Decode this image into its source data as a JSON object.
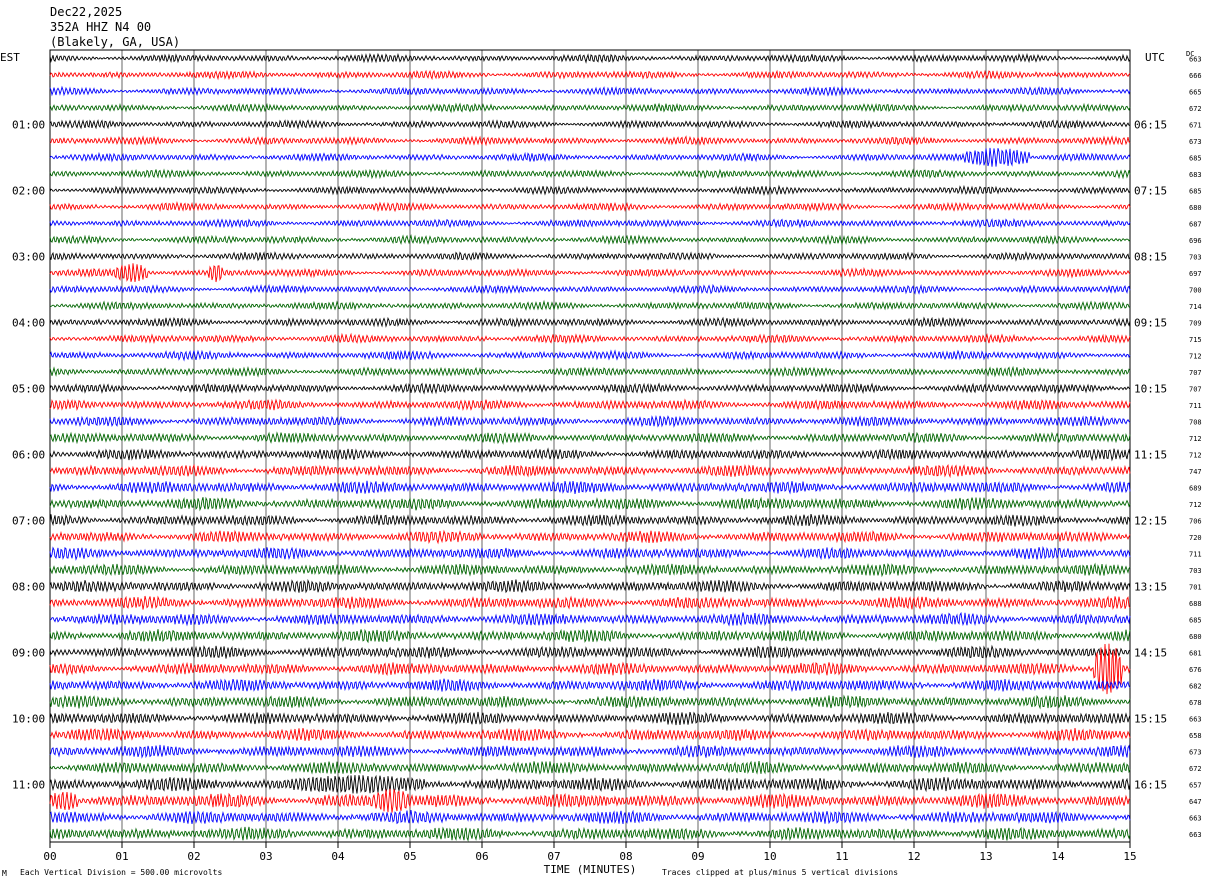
{
  "header": {
    "date": "Dec22,2025",
    "station": "352A HHZ N4 00",
    "location": "(Blakely, GA, USA)"
  },
  "left_axis_title": "EST",
  "right_axis_title": "UTC",
  "dc_header": "DC",
  "footer": {
    "scale_text": "Each Vertical Division =  500.00 microvolts",
    "clip_text": "Traces clipped at plus/minus 5 vertical divisions",
    "mark": "M"
  },
  "colors": {
    "trace_cycle": [
      "#000000",
      "#ff0000",
      "#0000ff",
      "#006400"
    ],
    "grid": "#000000"
  },
  "chart_data": {
    "type": "line",
    "title": "Dec22,2025 352A HHZ N4 00 (Blakely, GA, USA)",
    "xlabel": "TIME (MINUTES)",
    "xlim": [
      0,
      15
    ],
    "x_ticks": [
      "00",
      "01",
      "02",
      "03",
      "04",
      "05",
      "06",
      "07",
      "08",
      "09",
      "10",
      "11",
      "12",
      "13",
      "14",
      "15"
    ],
    "rows": 48,
    "minutes_per_row": 15,
    "est_labels": [
      "01:00",
      "02:00",
      "03:00",
      "04:00",
      "05:00",
      "06:00",
      "07:00",
      "08:00",
      "09:00",
      "10:00",
      "11:00"
    ],
    "utc_labels": [
      "06:15",
      "07:15",
      "08:15",
      "09:15",
      "10:15",
      "11:15",
      "12:15",
      "13:15",
      "14:15",
      "15:15",
      "16:15"
    ],
    "hour_label_rows": [
      4,
      8,
      12,
      16,
      20,
      24,
      28,
      32,
      36,
      40,
      44
    ],
    "dc_values": [
      "663",
      "666",
      "665",
      "672",
      "671",
      "673",
      "685",
      "683",
      "685",
      "680",
      "687",
      "696",
      "703",
      "697",
      "700",
      "714",
      "709",
      "715",
      "712",
      "707",
      "707",
      "711",
      "708",
      "712",
      "712",
      "747",
      "689",
      "712",
      "706",
      "720",
      "711",
      "703",
      "701",
      "688",
      "685",
      "680",
      "681",
      "676",
      "682",
      "678",
      "663",
      "658",
      "673",
      "672",
      "657",
      "647",
      "663",
      "663"
    ],
    "trace_amplitude_profile": [
      1.0,
      1.0,
      1.0,
      1.0,
      1.0,
      1.0,
      1.0,
      1.0,
      1.0,
      1.0,
      1.0,
      1.0,
      1.0,
      1.0,
      1.0,
      1.0,
      1.1,
      1.1,
      1.1,
      1.1,
      1.2,
      1.3,
      1.3,
      1.3,
      1.4,
      1.5,
      1.6,
      1.6,
      1.5,
      1.5,
      1.5,
      1.5,
      1.6,
      1.6,
      1.6,
      1.6,
      1.6,
      1.6,
      1.6,
      1.6,
      1.6,
      1.6,
      1.6,
      1.6,
      1.8,
      1.9,
      1.7,
      1.7
    ],
    "events": [
      {
        "row": 6,
        "start_min": 12.7,
        "end_min": 13.6,
        "amplitude": 3.0
      },
      {
        "row": 13,
        "start_min": 0.9,
        "end_min": 1.35,
        "amplitude": 3.0
      },
      {
        "row": 13,
        "start_min": 2.2,
        "end_min": 2.4,
        "amplitude": 3.0
      },
      {
        "row": 37,
        "start_min": 14.5,
        "end_min": 14.9,
        "amplitude": 5.0
      },
      {
        "row": 44,
        "start_min": 3.3,
        "end_min": 5.2,
        "amplitude": 1.6
      },
      {
        "row": 45,
        "start_min": 0.0,
        "end_min": 0.4,
        "amplitude": 1.6
      },
      {
        "row": 45,
        "start_min": 4.5,
        "end_min": 5.0,
        "amplitude": 2.0
      }
    ]
  }
}
